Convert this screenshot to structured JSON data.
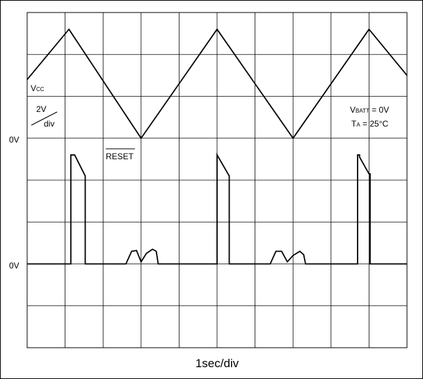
{
  "chart_data": {
    "type": "line",
    "title": "",
    "xlabel": "1sec/div",
    "ylabel": "",
    "grid": true,
    "xlim": [
      0,
      10
    ],
    "grid_rows": 8,
    "channels": {
      "vcc": {
        "name_main": "V",
        "name_sub": "CC",
        "scale_num": "2V",
        "scale_den": "div",
        "zero_label": "0V",
        "zero_row": 3
      },
      "reset": {
        "name": "RESET",
        "zero_label": "0V",
        "zero_row": 6
      }
    },
    "conditions": {
      "vbatt_main": "V",
      "vbatt_sub": "BATT",
      "vbatt_value": " = 0V",
      "ta_main": "T",
      "ta_sub": "A",
      "ta_value": " = 25°C"
    },
    "series": [
      {
        "id": "vcc",
        "units": "div",
        "points": [
          [
            0,
            1.4
          ],
          [
            1.1,
            2.6
          ],
          [
            3.0,
            0
          ],
          [
            5.0,
            2.6
          ],
          [
            7.0,
            0
          ],
          [
            9.0,
            2.6
          ],
          [
            10.0,
            1.5
          ]
        ]
      },
      {
        "id": "reset",
        "units": "div",
        "points": [
          [
            0,
            0
          ],
          [
            1.15,
            0
          ],
          [
            1.15,
            2.6
          ],
          [
            1.25,
            2.6
          ],
          [
            1.53,
            2.1
          ],
          [
            1.53,
            0
          ],
          [
            2.6,
            0
          ],
          [
            2.75,
            0.3
          ],
          [
            2.88,
            0.32
          ],
          [
            3.0,
            0.05
          ],
          [
            3.14,
            0.25
          ],
          [
            3.3,
            0.35
          ],
          [
            3.4,
            0.3
          ],
          [
            3.45,
            0
          ],
          [
            5.0,
            0
          ],
          [
            5.0,
            2.6
          ],
          [
            5.32,
            2.1
          ],
          [
            5.32,
            0
          ],
          [
            6.4,
            0
          ],
          [
            6.55,
            0.3
          ],
          [
            6.7,
            0.3
          ],
          [
            6.85,
            0.05
          ],
          [
            7.0,
            0.2
          ],
          [
            7.18,
            0.3
          ],
          [
            7.28,
            0.22
          ],
          [
            7.33,
            0
          ],
          [
            8.7,
            0
          ],
          [
            8.7,
            2.6
          ],
          [
            8.75,
            2.6
          ],
          [
            8.75,
            2.55
          ],
          [
            9.0,
            2.15
          ],
          [
            9.03,
            2.15
          ],
          [
            9.03,
            0
          ],
          [
            10.0,
            0
          ]
        ]
      }
    ]
  }
}
